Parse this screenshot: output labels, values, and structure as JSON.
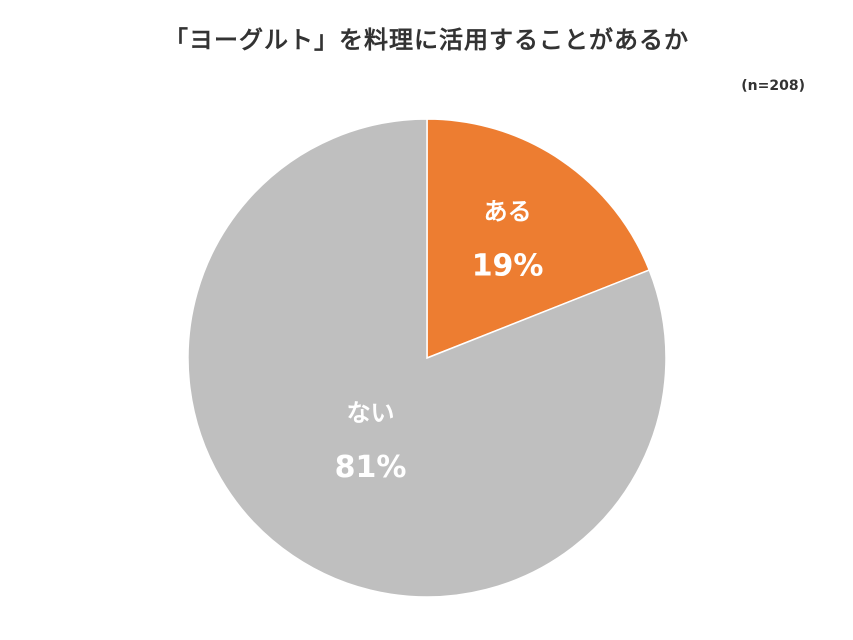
{
  "chart_data": {
    "type": "pie",
    "title": "「ヨーグルト」を料理に活用することがあるか",
    "note": "(n=208)",
    "categories": [
      "ある",
      "ない"
    ],
    "values": [
      19,
      81
    ],
    "value_labels": [
      "19%",
      "81%"
    ],
    "colors": [
      "#ED7D31",
      "#BFBFBF"
    ],
    "start_angle": "12 o'clock",
    "direction": "clockwise",
    "legend": "none"
  }
}
